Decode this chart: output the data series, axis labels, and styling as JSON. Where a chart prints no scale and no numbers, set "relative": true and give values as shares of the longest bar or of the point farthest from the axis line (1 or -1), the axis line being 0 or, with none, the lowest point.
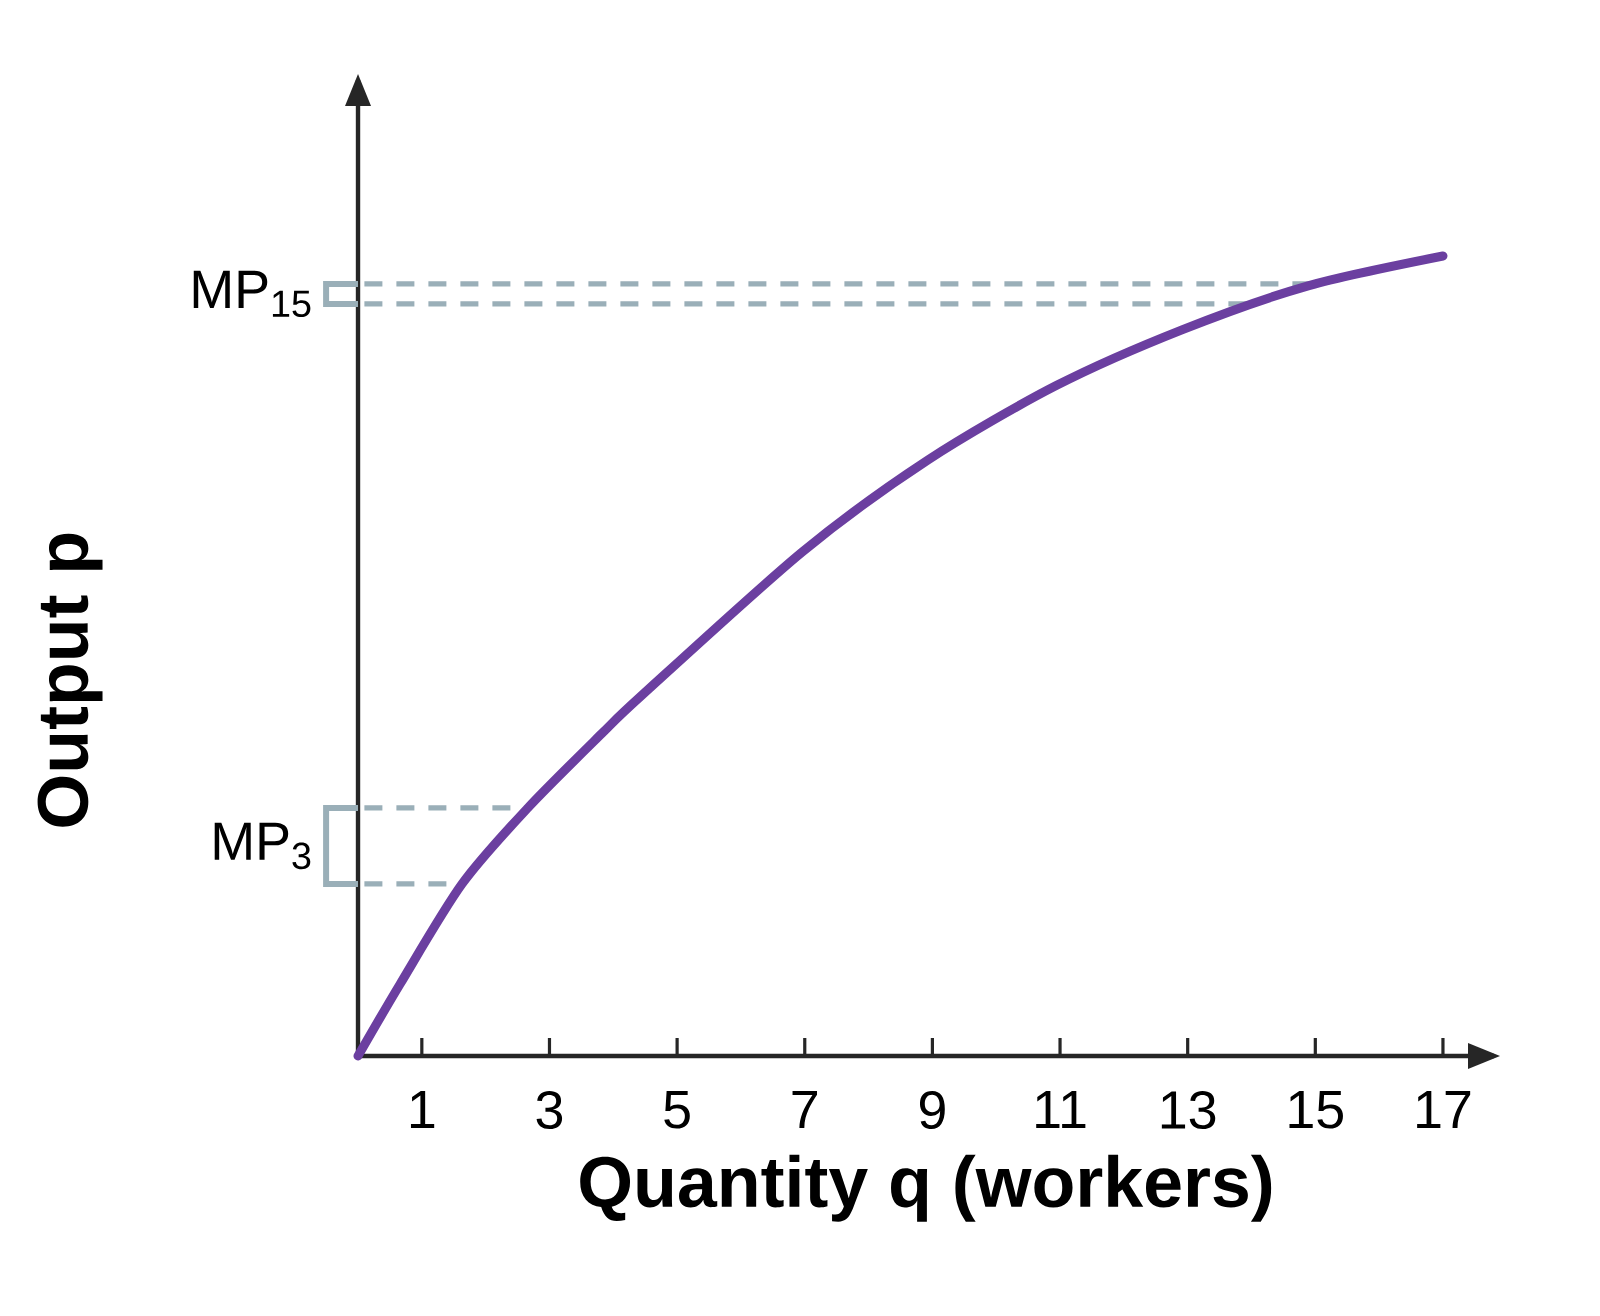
{
  "chart_data": {
    "type": "line",
    "xlabel": "Quantity q (workers)",
    "ylabel": "Output p",
    "relative": true,
    "x": [
      0,
      0.66,
      1.63,
      2.66,
      3.82,
      4.45,
      6.96,
      8.93,
      10.94,
      12.92,
      14.9,
      17
    ],
    "series": [
      {
        "color": "#6b3fa0",
        "values": [
          0,
          0.09,
          0.215,
          0.31,
          0.403,
          0.451,
          0.63,
          0.745,
          0.838,
          0.908,
          0.963,
          1.0
        ]
      }
    ],
    "xlim": [
      0,
      17.8
    ],
    "xticks": [
      1,
      3,
      5,
      7,
      9,
      11,
      13,
      15,
      17
    ],
    "ref_lines": [
      {
        "axis": "y",
        "value": 0.215,
        "label": "MP$_{3}$",
        "color": "#9aafb8",
        "line_style": "dashed"
      },
      {
        "axis": "y",
        "value": 0.31,
        "label": null,
        "color": "#9aafb8",
        "line_style": "dashed"
      },
      {
        "axis": "y",
        "value": 0.94,
        "label": "MP$_{15}$",
        "color": "#9aafb8",
        "line_style": "dashed"
      },
      {
        "axis": "y",
        "value": 0.965,
        "label": null,
        "color": "#9aafb8",
        "line_style": "dashed"
      }
    ],
    "tick_labels": "x",
    "marker": "none",
    "line_style": "solid",
    "grid": false
  }
}
